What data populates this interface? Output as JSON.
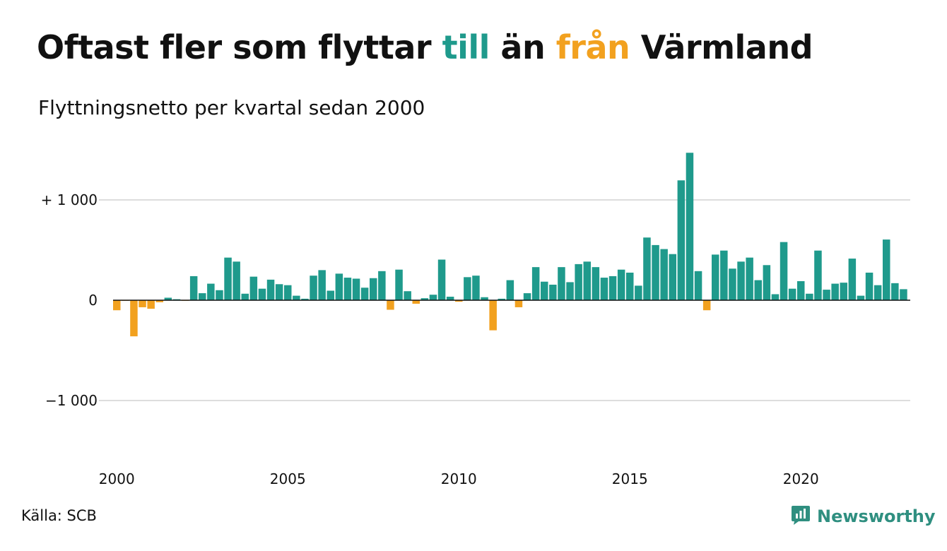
{
  "title": {
    "part1": "Oftast fler som flyttar ",
    "pos_word": "till",
    "part2": " än ",
    "neg_word": "från",
    "part3": " Värmland"
  },
  "subtitle": "Flyttningsnetto per kvartal sedan 2000",
  "source": "Källa: SCB",
  "brand": "Newsworthy",
  "colors": {
    "positive": "#1f9a8c",
    "negative": "#f2a11f",
    "grid": "#dddddd",
    "zero_line": "#111111",
    "brand": "#2f8f80"
  },
  "chart_data": {
    "type": "bar",
    "ylim": [
      -1500,
      1500
    ],
    "y_ticks": [
      {
        "value": 1000,
        "label": "+ 1 000"
      },
      {
        "value": 0,
        "label": "0"
      },
      {
        "value": -1000,
        "label": "−1 000"
      }
    ],
    "x_ticks": [
      {
        "year": 2000,
        "label": "2000"
      },
      {
        "year": 2005,
        "label": "2005"
      },
      {
        "year": 2010,
        "label": "2010"
      },
      {
        "year": 2015,
        "label": "2015"
      },
      {
        "year": 2020,
        "label": "2020"
      }
    ],
    "first_year": 2000,
    "series": [
      {
        "values": [
          -100,
          -5,
          -360,
          -70,
          -85,
          -20,
          25,
          10,
          -5,
          240,
          70,
          165,
          100,
          425,
          385,
          65,
          235,
          115,
          205,
          160,
          150,
          45,
          15,
          245,
          300,
          95,
          265,
          225,
          215,
          125,
          220,
          290,
          -95,
          305,
          90,
          -35,
          20,
          55,
          405,
          35,
          -15,
          230,
          245,
          30,
          -300,
          15,
          200,
          -70,
          70,
          330,
          185,
          155,
          330,
          180,
          360,
          385,
          330,
          225,
          240,
          305,
          275,
          145,
          625,
          550,
          510,
          460,
          1195,
          1470,
          290,
          -100,
          455,
          495,
          315,
          385,
          425,
          200,
          350,
          60,
          580,
          115,
          190,
          65,
          495,
          105,
          165,
          175,
          415,
          45,
          275,
          150,
          605,
          170,
          110
        ]
      }
    ]
  }
}
